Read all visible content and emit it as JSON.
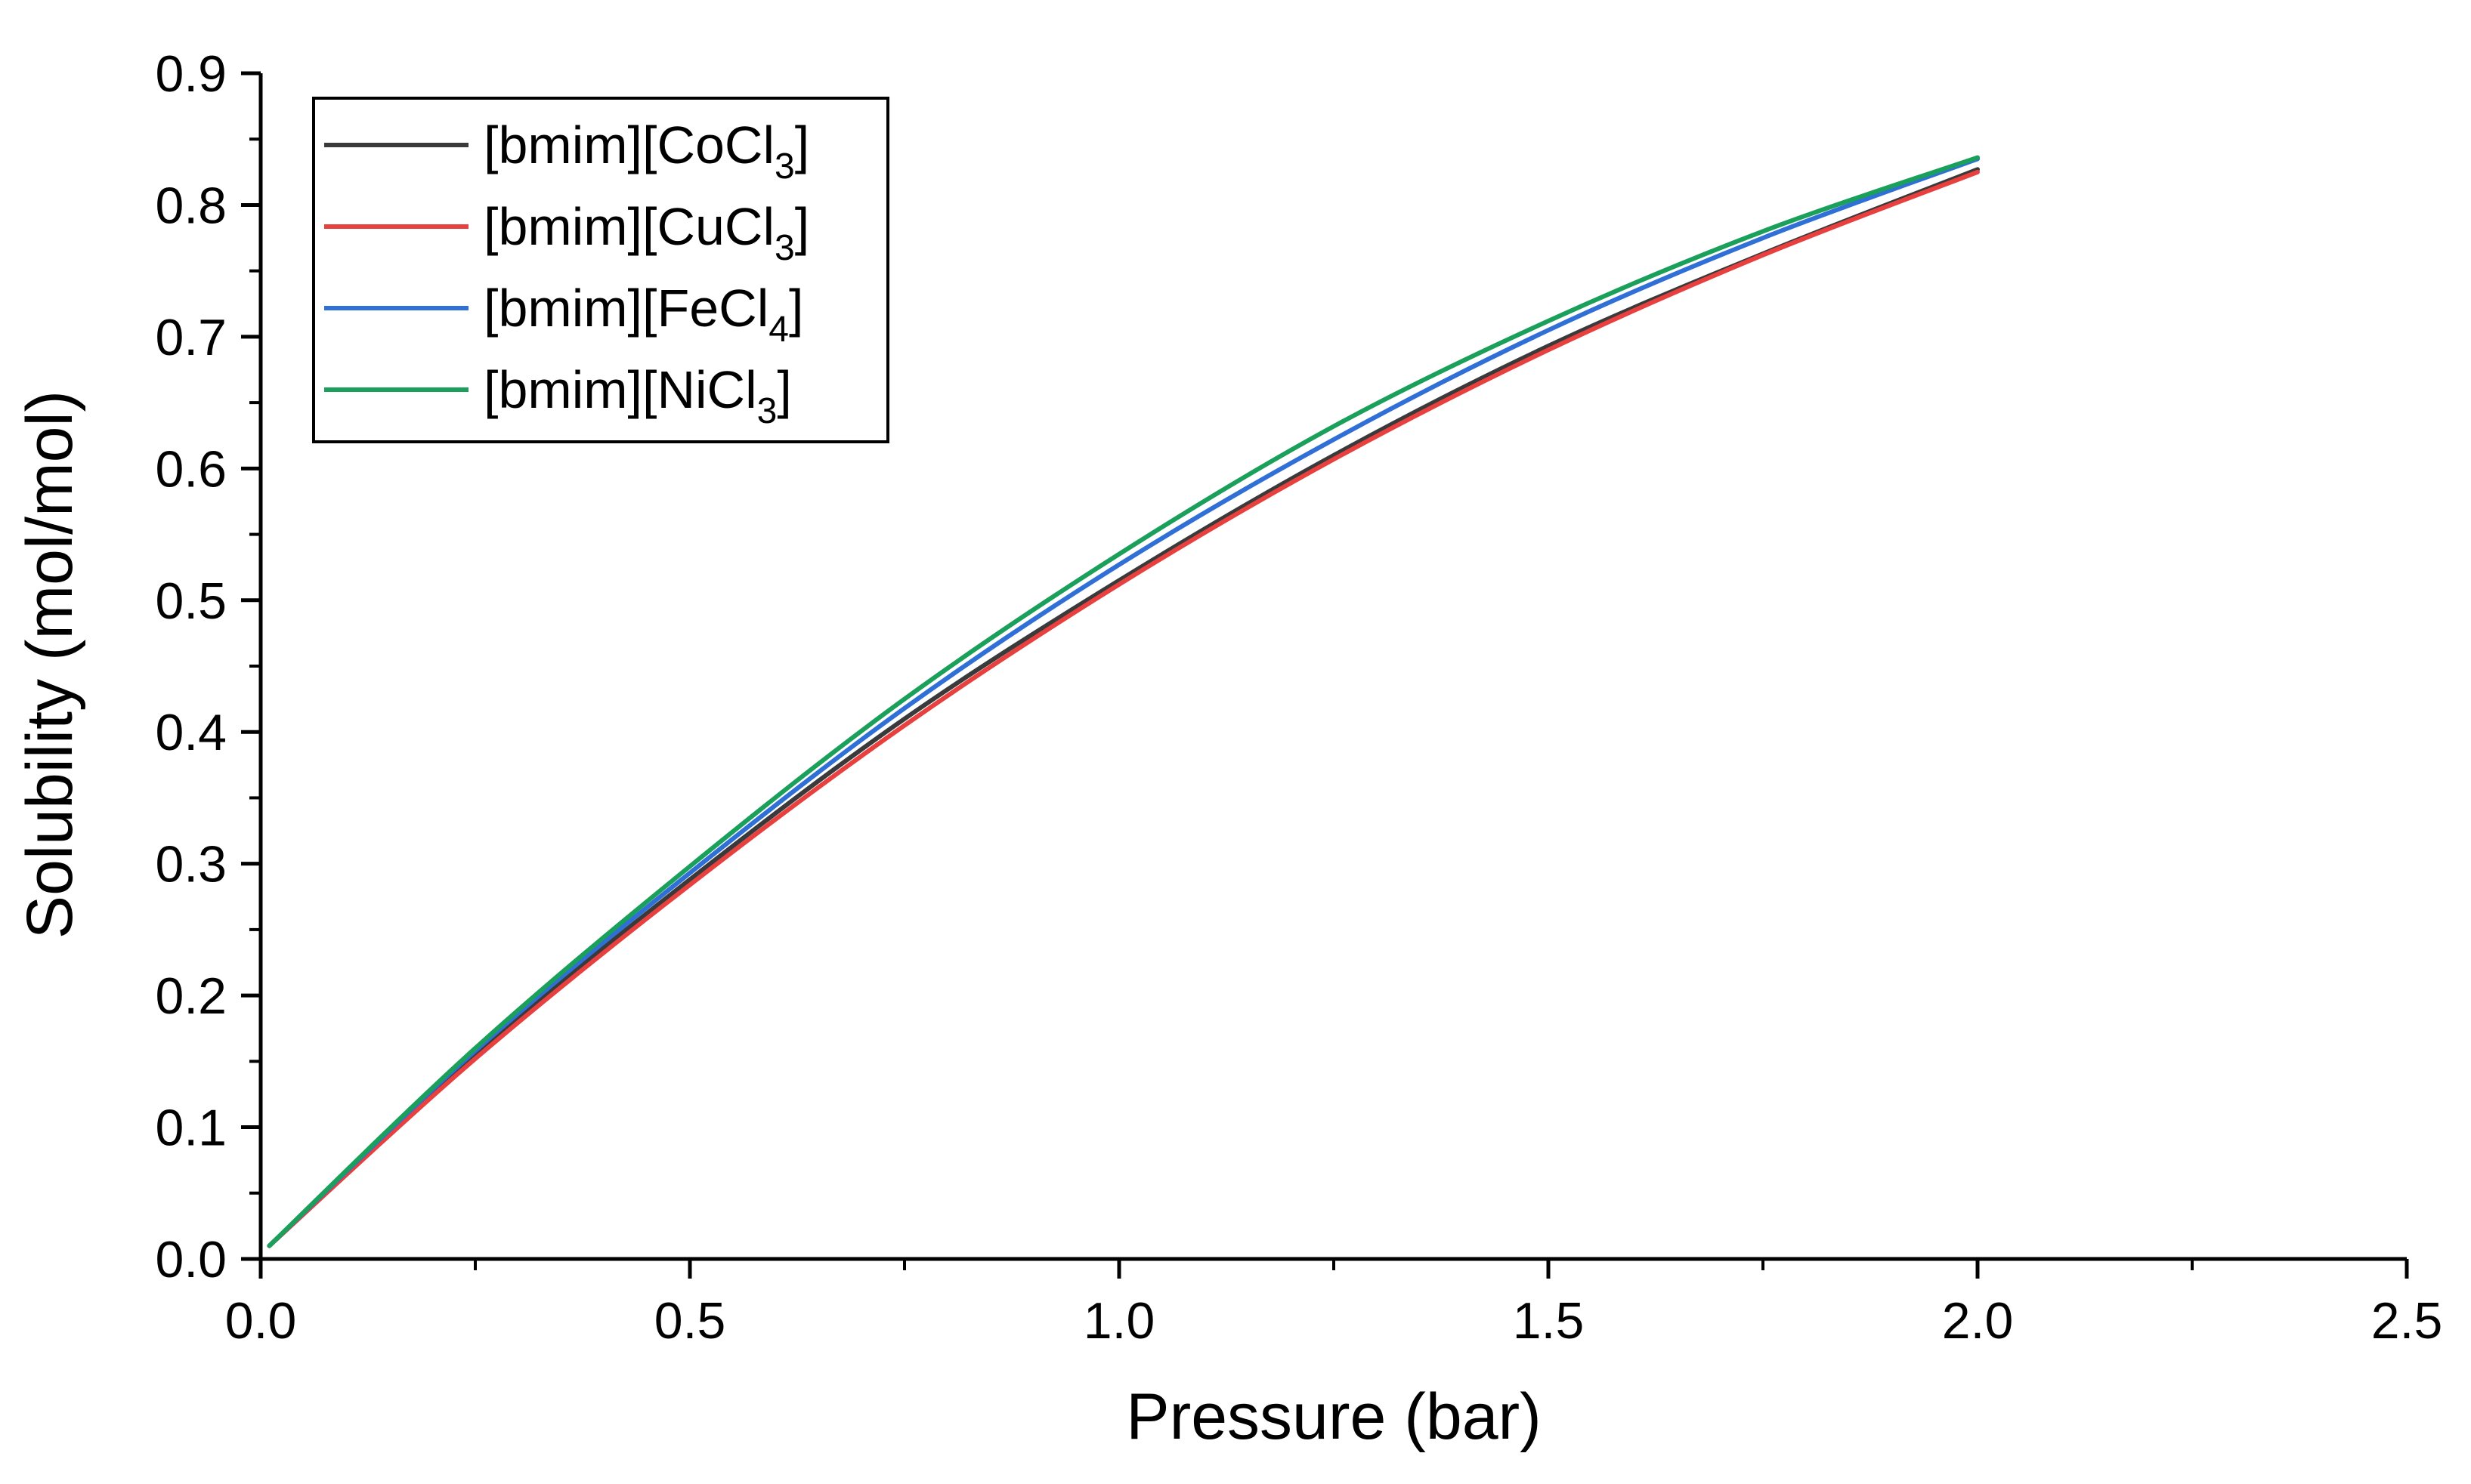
{
  "chart_data": {
    "type": "line",
    "title": "",
    "xlabel": "Pressure (bar)",
    "ylabel": "Solubility (mol/mol)",
    "xlim": [
      0.0,
      2.5
    ],
    "ylim": [
      0.0,
      0.9
    ],
    "xticks": [
      0.0,
      0.5,
      1.0,
      1.5,
      2.0,
      2.5
    ],
    "xtick_labels": [
      "0.0",
      "0.5",
      "1.0",
      "1.5",
      "2.0",
      "2.5"
    ],
    "yticks": [
      0.0,
      0.1,
      0.2,
      0.3,
      0.4,
      0.5,
      0.6,
      0.7,
      0.8,
      0.9
    ],
    "ytick_labels": [
      "0.0",
      "0.1",
      "0.2",
      "0.3",
      "0.4",
      "0.5",
      "0.6",
      "0.7",
      "0.8",
      "0.9"
    ],
    "grid": false,
    "legend_position": "top-left",
    "x": [
      0.01,
      0.25,
      0.5,
      0.75,
      1.0,
      1.25,
      1.5,
      1.75,
      2.0
    ],
    "series": [
      {
        "name": "[bmim][CoCl3]",
        "label_main": "[bmim][CoCl",
        "label_sub": "3",
        "label_end": "]",
        "color": "#3a3a3a",
        "values": [
          0.01,
          0.155,
          0.288,
          0.41,
          0.515,
          0.61,
          0.693,
          0.763,
          0.827
        ]
      },
      {
        "name": "[bmim][CuCl3]",
        "label_main": "[bmim][CuCl",
        "label_sub": "3",
        "label_end": "]",
        "color": "#e8403e",
        "values": [
          0.01,
          0.152,
          0.284,
          0.405,
          0.512,
          0.607,
          0.69,
          0.762,
          0.825
        ]
      },
      {
        "name": "[bmim][FeCl4]",
        "label_main": "[bmim][FeCl",
        "label_sub": "4",
        "label_end": "]",
        "color": "#2f6fd6",
        "values": [
          0.01,
          0.158,
          0.293,
          0.418,
          0.527,
          0.622,
          0.705,
          0.775,
          0.835
        ]
      },
      {
        "name": "[bmim][NiCl3]",
        "label_main": "[bmim][NiCl",
        "label_sub": "3",
        "label_end": "]",
        "color": "#1aa05a",
        "values": [
          0.01,
          0.16,
          0.298,
          0.425,
          0.535,
          0.632,
          0.712,
          0.78,
          0.836
        ]
      }
    ]
  }
}
